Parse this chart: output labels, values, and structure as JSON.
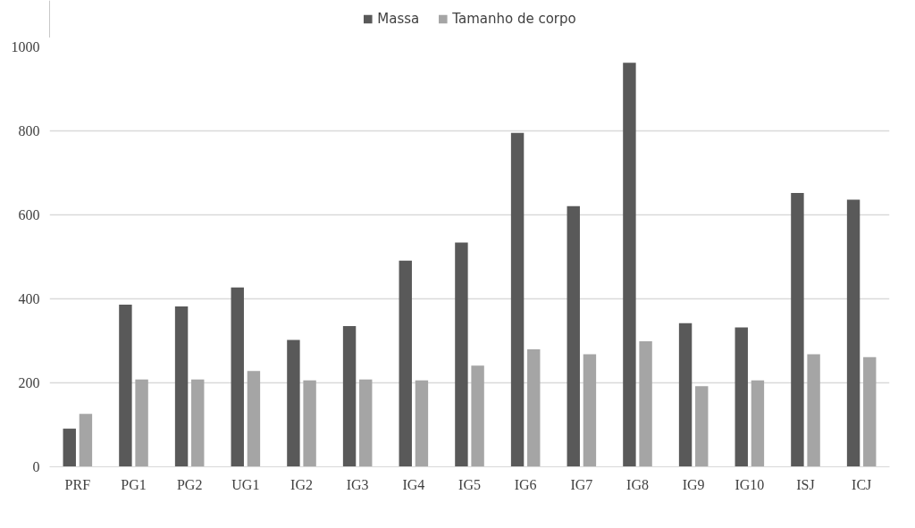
{
  "chart_data": {
    "type": "bar",
    "categories": [
      "PRF",
      "PG1",
      "PG2",
      "UG1",
      "IG2",
      "IG3",
      "IG4",
      "IG5",
      "IG6",
      "IG7",
      "IG8",
      "IG9",
      "IG10",
      "ISJ",
      "ICJ"
    ],
    "series": [
      {
        "name": "Massa",
        "color": "#595959",
        "values": [
          91,
          386,
          382,
          427,
          302,
          335,
          491,
          534,
          795,
          621,
          962,
          342,
          332,
          652,
          636
        ]
      },
      {
        "name": "Tamanho de corpo",
        "color": "#a5a5a5",
        "values": [
          126,
          208,
          208,
          228,
          206,
          208,
          206,
          241,
          280,
          268,
          299,
          192,
          206,
          268,
          261
        ]
      }
    ],
    "ylim": [
      0,
      1000
    ],
    "yticks": [
      0,
      200,
      400,
      600,
      800,
      1000
    ],
    "grid": "y",
    "legend": "top"
  }
}
